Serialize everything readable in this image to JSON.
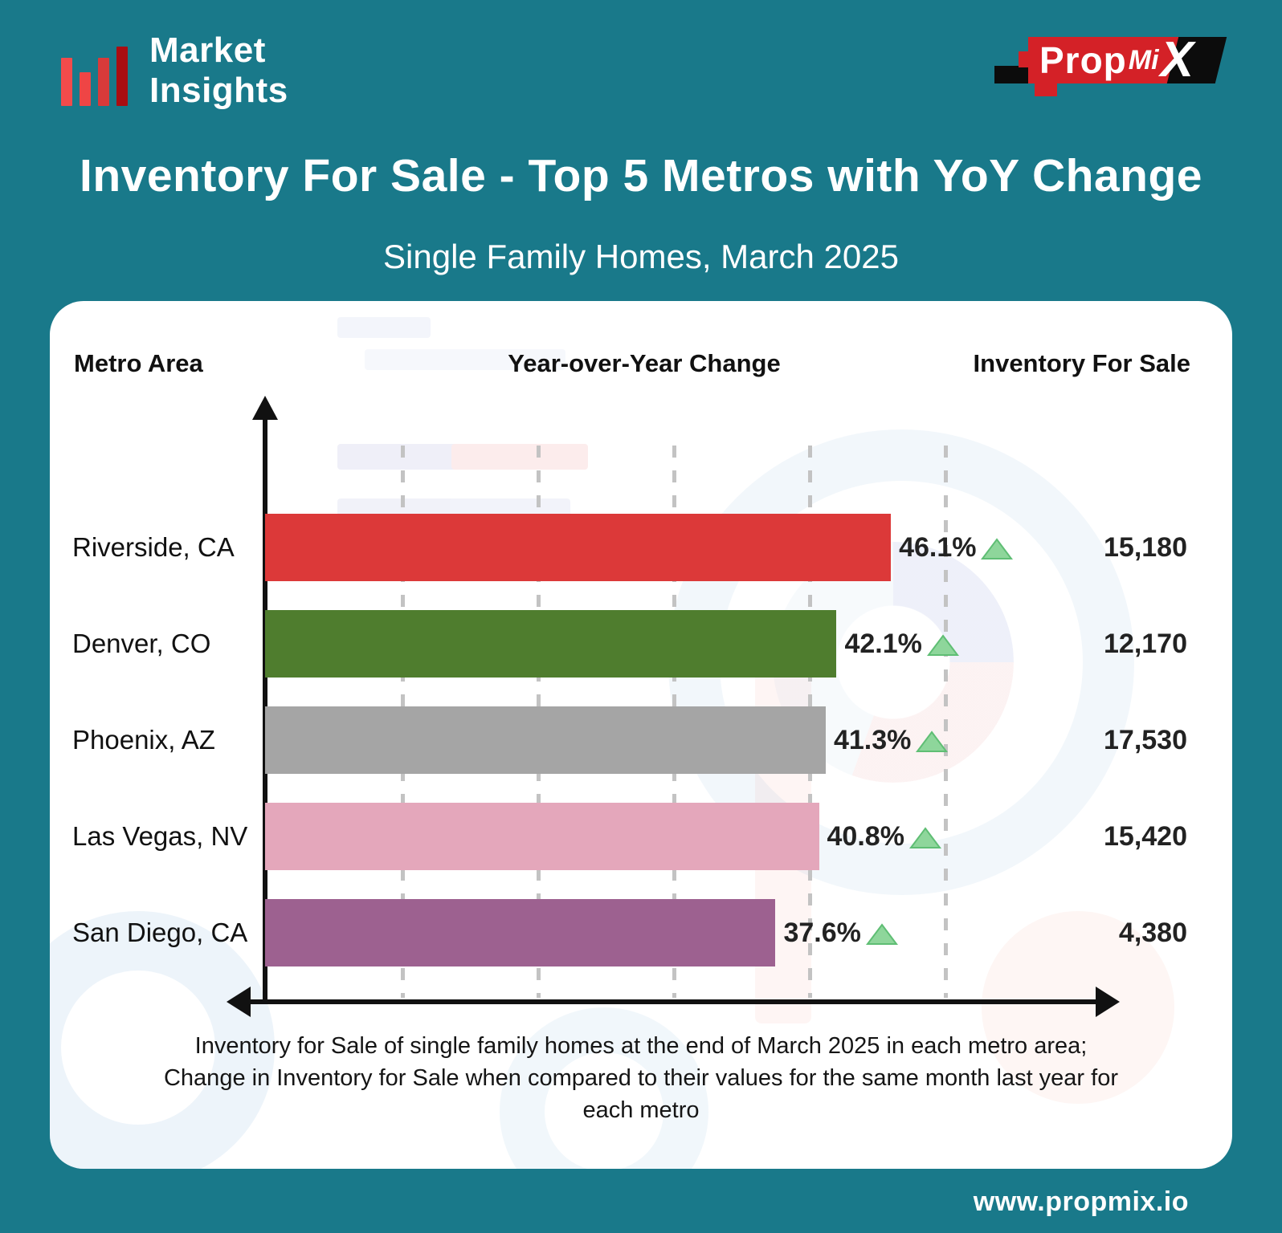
{
  "brand": {
    "market_insights": {
      "line1": "Market",
      "line2": "Insights"
    },
    "propmix": {
      "prop": "Prop",
      "mi": "Mi",
      "x": "X"
    }
  },
  "title": "Inventory For Sale - Top 5 Metros with YoY Change",
  "subtitle": "Single Family Homes, March 2025",
  "columns": {
    "metro": "Metro Area",
    "yoy": "Year-over-Year Change",
    "inventory": "Inventory For Sale"
  },
  "chart_data": {
    "type": "bar",
    "orientation": "horizontal",
    "title": "Inventory For Sale - Top 5 Metros with YoY Change",
    "subtitle": "Single Family Homes, March 2025",
    "categories": [
      "Riverside, CA",
      "Denver, CO",
      "Phoenix, AZ",
      "Las Vegas, NV",
      "San Diego, CA"
    ],
    "series": [
      {
        "name": "Year-over-Year Change (%)",
        "values": [
          46.1,
          42.1,
          41.3,
          40.8,
          37.6
        ]
      },
      {
        "name": "Inventory For Sale",
        "values": [
          15180,
          12170,
          17530,
          15420,
          4380
        ]
      }
    ],
    "pct_labels": [
      "46.1%",
      "42.1%",
      "41.3%",
      "40.8%",
      "37.6%"
    ],
    "inventory_labels": [
      "15,180",
      "12,170",
      "17,530",
      "15,420",
      "4,380"
    ],
    "bar_colors": [
      "#dc3939",
      "#4f7d2e",
      "#a5a5a5",
      "#e4a7bb",
      "#9d6190"
    ],
    "change_direction": "up",
    "xlabel": "Year-over-Year Change",
    "xlim": [
      0,
      50
    ],
    "gridline_step_pct": 10,
    "grid": "vertical-dashed",
    "legend_position": "none"
  },
  "caption": {
    "lines": [
      "Inventory for Sale of single family homes at the end of March 2025 in each metro area;",
      "Change in Inventory for Sale when compared to their values for the same month last year for",
      "each metro"
    ]
  },
  "footer": {
    "url": "www.propmix.io"
  },
  "colors": {
    "background_teal": "#19798a",
    "card_white": "#ffffff",
    "axis_black": "#111111",
    "gridline_grey": "#c3c3c3",
    "triangle_fill": "#8ed69b",
    "triangle_stroke": "#5fbe74",
    "propmix_red": "#d42127",
    "logo_bar_reds": [
      "#f24b4b",
      "#ef4545",
      "#d83a3a",
      "#aa0d12"
    ]
  }
}
